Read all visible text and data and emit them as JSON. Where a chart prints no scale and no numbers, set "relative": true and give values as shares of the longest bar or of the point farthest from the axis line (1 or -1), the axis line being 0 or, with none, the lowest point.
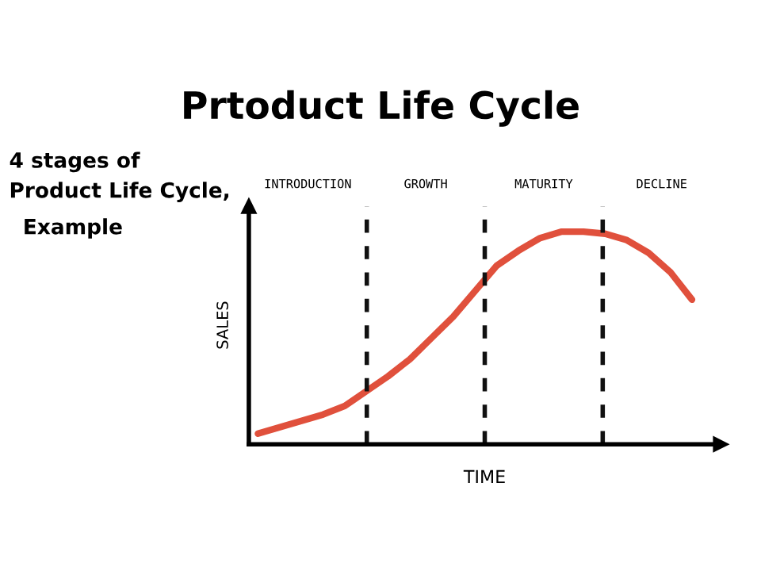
{
  "chart_data": {
    "type": "line",
    "title": "Prtoduct Life Cycle",
    "annotations": [
      "4 stages of\nProduct Life Cycle,",
      "Example",
      "INTRODUCTION",
      "GROWTH",
      "MATURITY",
      "DECLINE"
    ],
    "xlabel": "TIME",
    "ylabel": "SALES",
    "relative": true,
    "categories": [
      null,
      null,
      null,
      null,
      null,
      null,
      null,
      null,
      null,
      null,
      null,
      null,
      null,
      null,
      null,
      null,
      null,
      null,
      null,
      null,
      null
    ],
    "series": [
      {
        "color": "#e0503c",
        "values": [
          0.05,
          0.08,
          0.11,
          0.14,
          0.18,
          0.25,
          0.32,
          0.4,
          0.5,
          0.6,
          0.72,
          0.84,
          0.91,
          0.97,
          1.0,
          1.0,
          0.99,
          0.96,
          0.9,
          0.81,
          0.68
        ]
      }
    ],
    "legend": false,
    "line_style": "solid",
    "marker": "none"
  }
}
